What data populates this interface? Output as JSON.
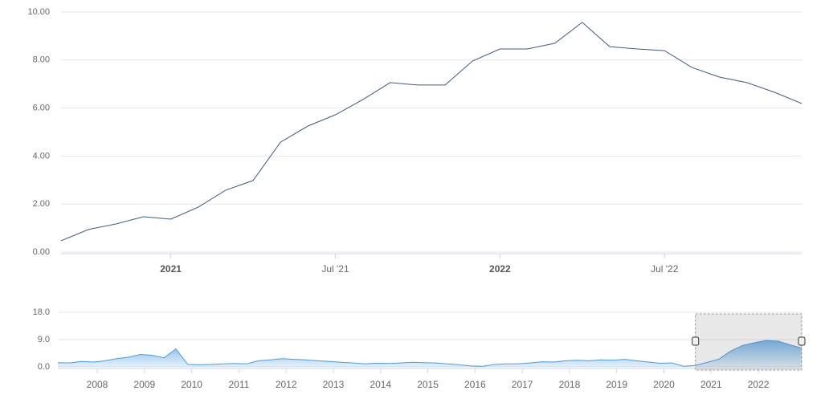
{
  "chart_data": [
    {
      "type": "line",
      "color": "#3d5a80",
      "x": [
        "2020-09",
        "2020-10",
        "2020-11",
        "2020-12",
        "2021-01",
        "2021-02",
        "2021-03",
        "2021-04",
        "2021-05",
        "2021-06",
        "2021-07",
        "2021-08",
        "2021-09",
        "2021-10",
        "2021-11",
        "2021-12",
        "2022-01",
        "2022-02",
        "2022-03",
        "2022-04",
        "2022-05",
        "2022-06",
        "2022-07",
        "2022-08",
        "2022-09",
        "2022-10",
        "2022-11",
        "2022-12"
      ],
      "values": [
        0.47,
        0.94,
        1.17,
        1.47,
        1.37,
        1.87,
        2.58,
        2.98,
        4.58,
        5.25,
        5.72,
        6.35,
        7.06,
        6.96,
        6.96,
        7.96,
        8.46,
        8.46,
        8.7,
        9.57,
        8.56,
        8.46,
        8.39,
        7.69,
        7.29,
        7.06,
        6.66,
        6.19
      ],
      "xlim": [
        "2020-09",
        "2022-12"
      ],
      "xticks": [
        {
          "value": "2021-01",
          "label": "2021"
        },
        {
          "value": "2021-07",
          "label": "Jul '21"
        },
        {
          "value": "2022-01",
          "label": "2022"
        },
        {
          "value": "2022-07",
          "label": "Jul '22"
        }
      ],
      "ylim": [
        0,
        10
      ],
      "yticks": [
        {
          "value": 0,
          "label": "0.00"
        },
        {
          "value": 2,
          "label": "2.00"
        },
        {
          "value": 4,
          "label": "4.00"
        },
        {
          "value": 6,
          "label": "6.00"
        },
        {
          "value": 8,
          "label": "8.00"
        },
        {
          "value": 10,
          "label": "10.00"
        }
      ],
      "grid": true
    },
    {
      "type": "area",
      "color": "#4a9be0",
      "x": [
        "2007-03",
        "2007-06",
        "2007-09",
        "2007-12",
        "2008-03",
        "2008-06",
        "2008-09",
        "2008-12",
        "2009-03",
        "2009-06",
        "2009-09",
        "2009-12",
        "2010-03",
        "2010-06",
        "2010-09",
        "2010-12",
        "2011-03",
        "2011-06",
        "2011-09",
        "2011-12",
        "2012-03",
        "2012-06",
        "2012-09",
        "2012-12",
        "2013-03",
        "2013-06",
        "2013-09",
        "2013-12",
        "2014-03",
        "2014-06",
        "2014-09",
        "2014-12",
        "2015-03",
        "2015-06",
        "2015-09",
        "2015-12",
        "2016-03",
        "2016-06",
        "2016-09",
        "2016-12",
        "2017-03",
        "2017-06",
        "2017-09",
        "2017-12",
        "2018-03",
        "2018-06",
        "2018-09",
        "2018-12",
        "2019-03",
        "2019-06",
        "2019-09",
        "2019-12",
        "2020-03",
        "2020-06",
        "2020-09",
        "2020-12",
        "2021-03",
        "2021-06",
        "2021-09",
        "2021-12",
        "2022-03",
        "2022-06",
        "2022-09",
        "2022-12"
      ],
      "values": [
        1.4,
        1.3,
        1.8,
        1.6,
        2.0,
        2.7,
        3.2,
        4.1,
        3.8,
        3.0,
        5.9,
        0.8,
        0.7,
        0.8,
        1.0,
        1.1,
        1.0,
        2.0,
        2.3,
        2.7,
        2.5,
        2.3,
        2.0,
        1.8,
        1.5,
        1.3,
        1.0,
        1.2,
        1.1,
        1.3,
        1.5,
        1.4,
        1.3,
        1.0,
        0.7,
        0.3,
        0.2,
        0.8,
        1.0,
        1.0,
        1.3,
        1.7,
        1.6,
        2.0,
        2.2,
        2.0,
        2.3,
        2.2,
        2.5,
        2.0,
        1.6,
        1.2,
        1.3,
        0.2,
        0.47,
        1.47,
        2.58,
        5.25,
        7.06,
        7.96,
        8.7,
        8.46,
        7.29,
        6.19
      ],
      "xlim": [
        "2007-03",
        "2022-12"
      ],
      "xticks": [
        {
          "value": "2008-01",
          "label": "2008"
        },
        {
          "value": "2009-01",
          "label": "2009"
        },
        {
          "value": "2010-01",
          "label": "2010"
        },
        {
          "value": "2011-01",
          "label": "2011"
        },
        {
          "value": "2012-01",
          "label": "2012"
        },
        {
          "value": "2013-01",
          "label": "2013"
        },
        {
          "value": "2014-01",
          "label": "2014"
        },
        {
          "value": "2015-01",
          "label": "2015"
        },
        {
          "value": "2016-01",
          "label": "2016"
        },
        {
          "value": "2017-01",
          "label": "2017"
        },
        {
          "value": "2018-01",
          "label": "2018"
        },
        {
          "value": "2019-01",
          "label": "2019"
        },
        {
          "value": "2020-01",
          "label": "2020"
        },
        {
          "value": "2021-01",
          "label": "2021"
        },
        {
          "value": "2022-01",
          "label": "2022"
        }
      ],
      "ylim": [
        0,
        18
      ],
      "yticks": [
        {
          "value": 0,
          "label": "0.0"
        },
        {
          "value": 9,
          "label": "9.0"
        },
        {
          "value": 18,
          "label": "18.0"
        }
      ],
      "grid": true
    }
  ]
}
